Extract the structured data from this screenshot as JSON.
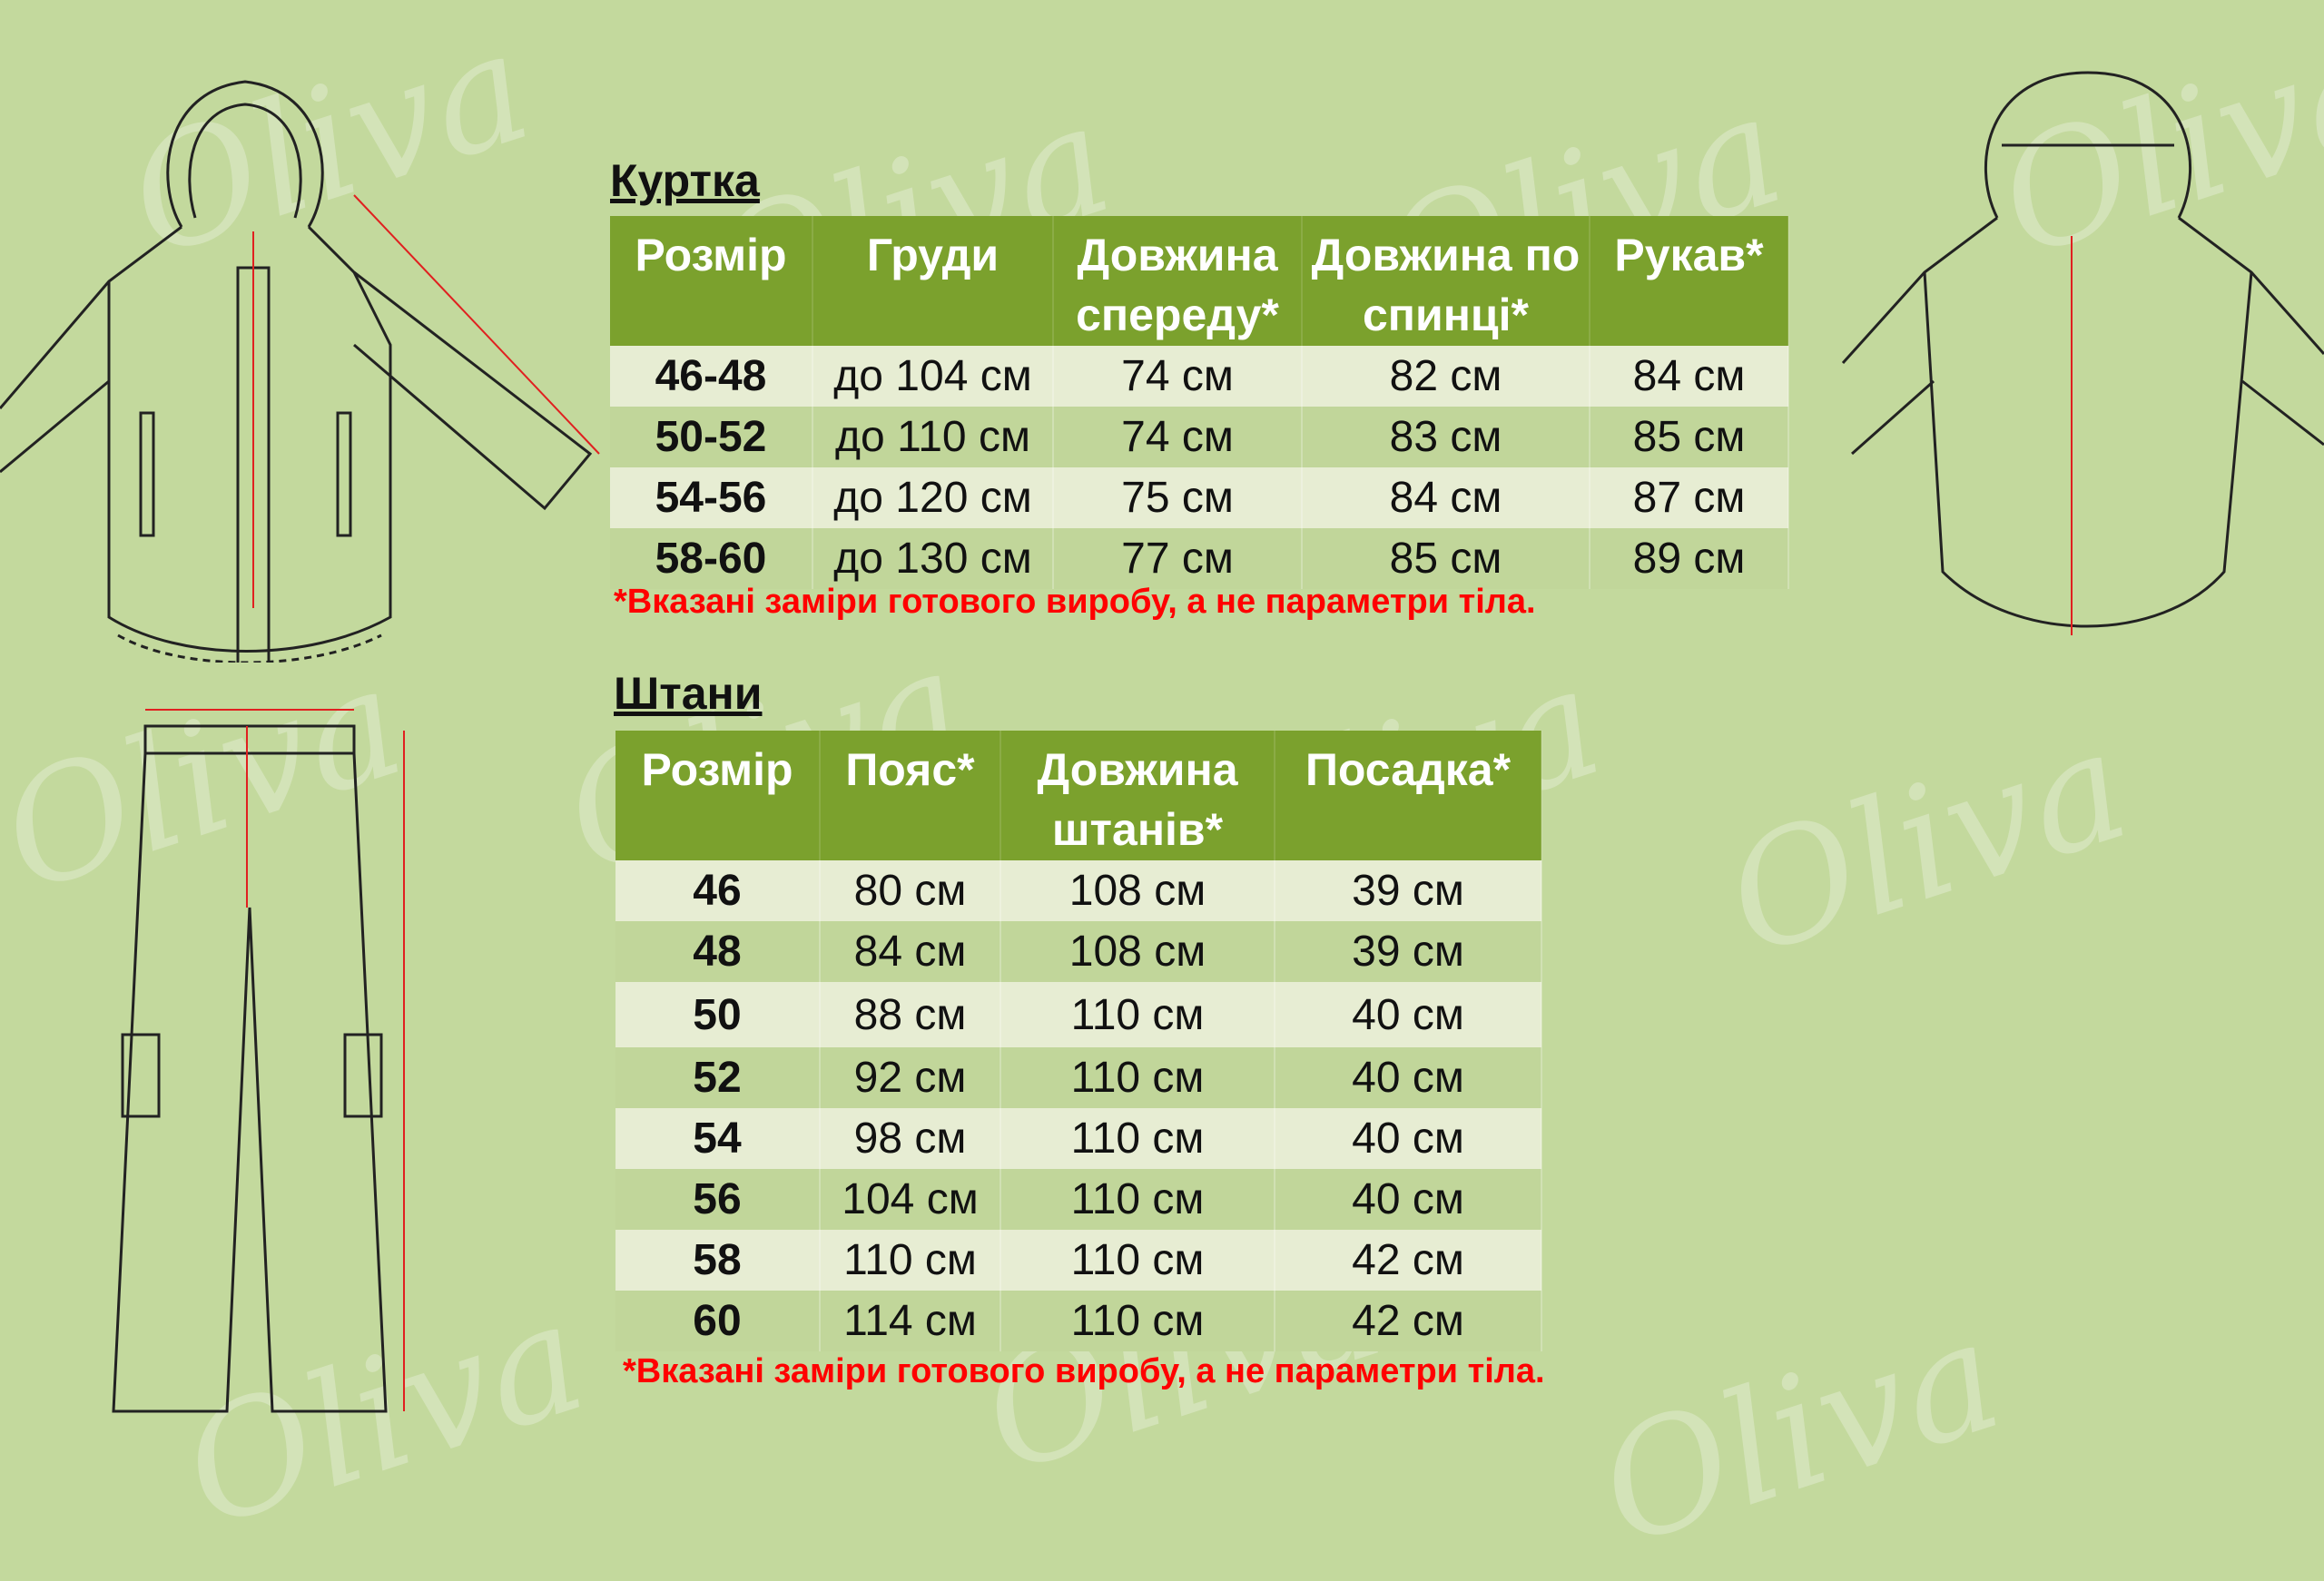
{
  "watermark": "Oliva",
  "jacket": {
    "title": "Куртка",
    "headers": [
      "Розмір",
      "Груди",
      "Довжина спереду*",
      "Довжина по спинці*",
      "Рукав*"
    ],
    "rows": [
      [
        "46-48",
        "до 104 см",
        "74 см",
        "82 см",
        "84 см"
      ],
      [
        "50-52",
        "до 110 см",
        "74 см",
        "83 см",
        "85 см"
      ],
      [
        "54-56",
        "до 120 см",
        "75 см",
        "84 см",
        "87 см"
      ],
      [
        "58-60",
        "до 130 см",
        "77 см",
        "85 см",
        "89 см"
      ]
    ],
    "note": "*Вказані заміри готового виробу, а не параметри тіла."
  },
  "pants": {
    "title": "Штани",
    "headers": [
      "Розмір",
      "Пояс*",
      "Довжина штанів*",
      "Посадка*"
    ],
    "rows": [
      [
        "46",
        "80 см",
        "108 см",
        "39 см"
      ],
      [
        "48",
        "84 см",
        "108 см",
        "39 см"
      ],
      [
        "50",
        "88 см",
        "110 см",
        "40 см"
      ],
      [
        "52",
        "92 см",
        "110 см",
        "40 см"
      ],
      [
        "54",
        "98 см",
        "110 см",
        "40 см"
      ],
      [
        "56",
        "104 см",
        "110 см",
        "40 см"
      ],
      [
        "58",
        "110 см",
        "110 см",
        "42 см"
      ],
      [
        "60",
        "114 см",
        "110 см",
        "42 см"
      ]
    ],
    "note": "*Вказані заміри готового виробу, а не параметри тіла."
  },
  "colors": {
    "background": "#c3d99d",
    "header": "#7ba12d",
    "row_light": "#e7edd3",
    "row_dark": "#c1d69a",
    "note": "#ff0000",
    "measure_line": "#e02020"
  }
}
